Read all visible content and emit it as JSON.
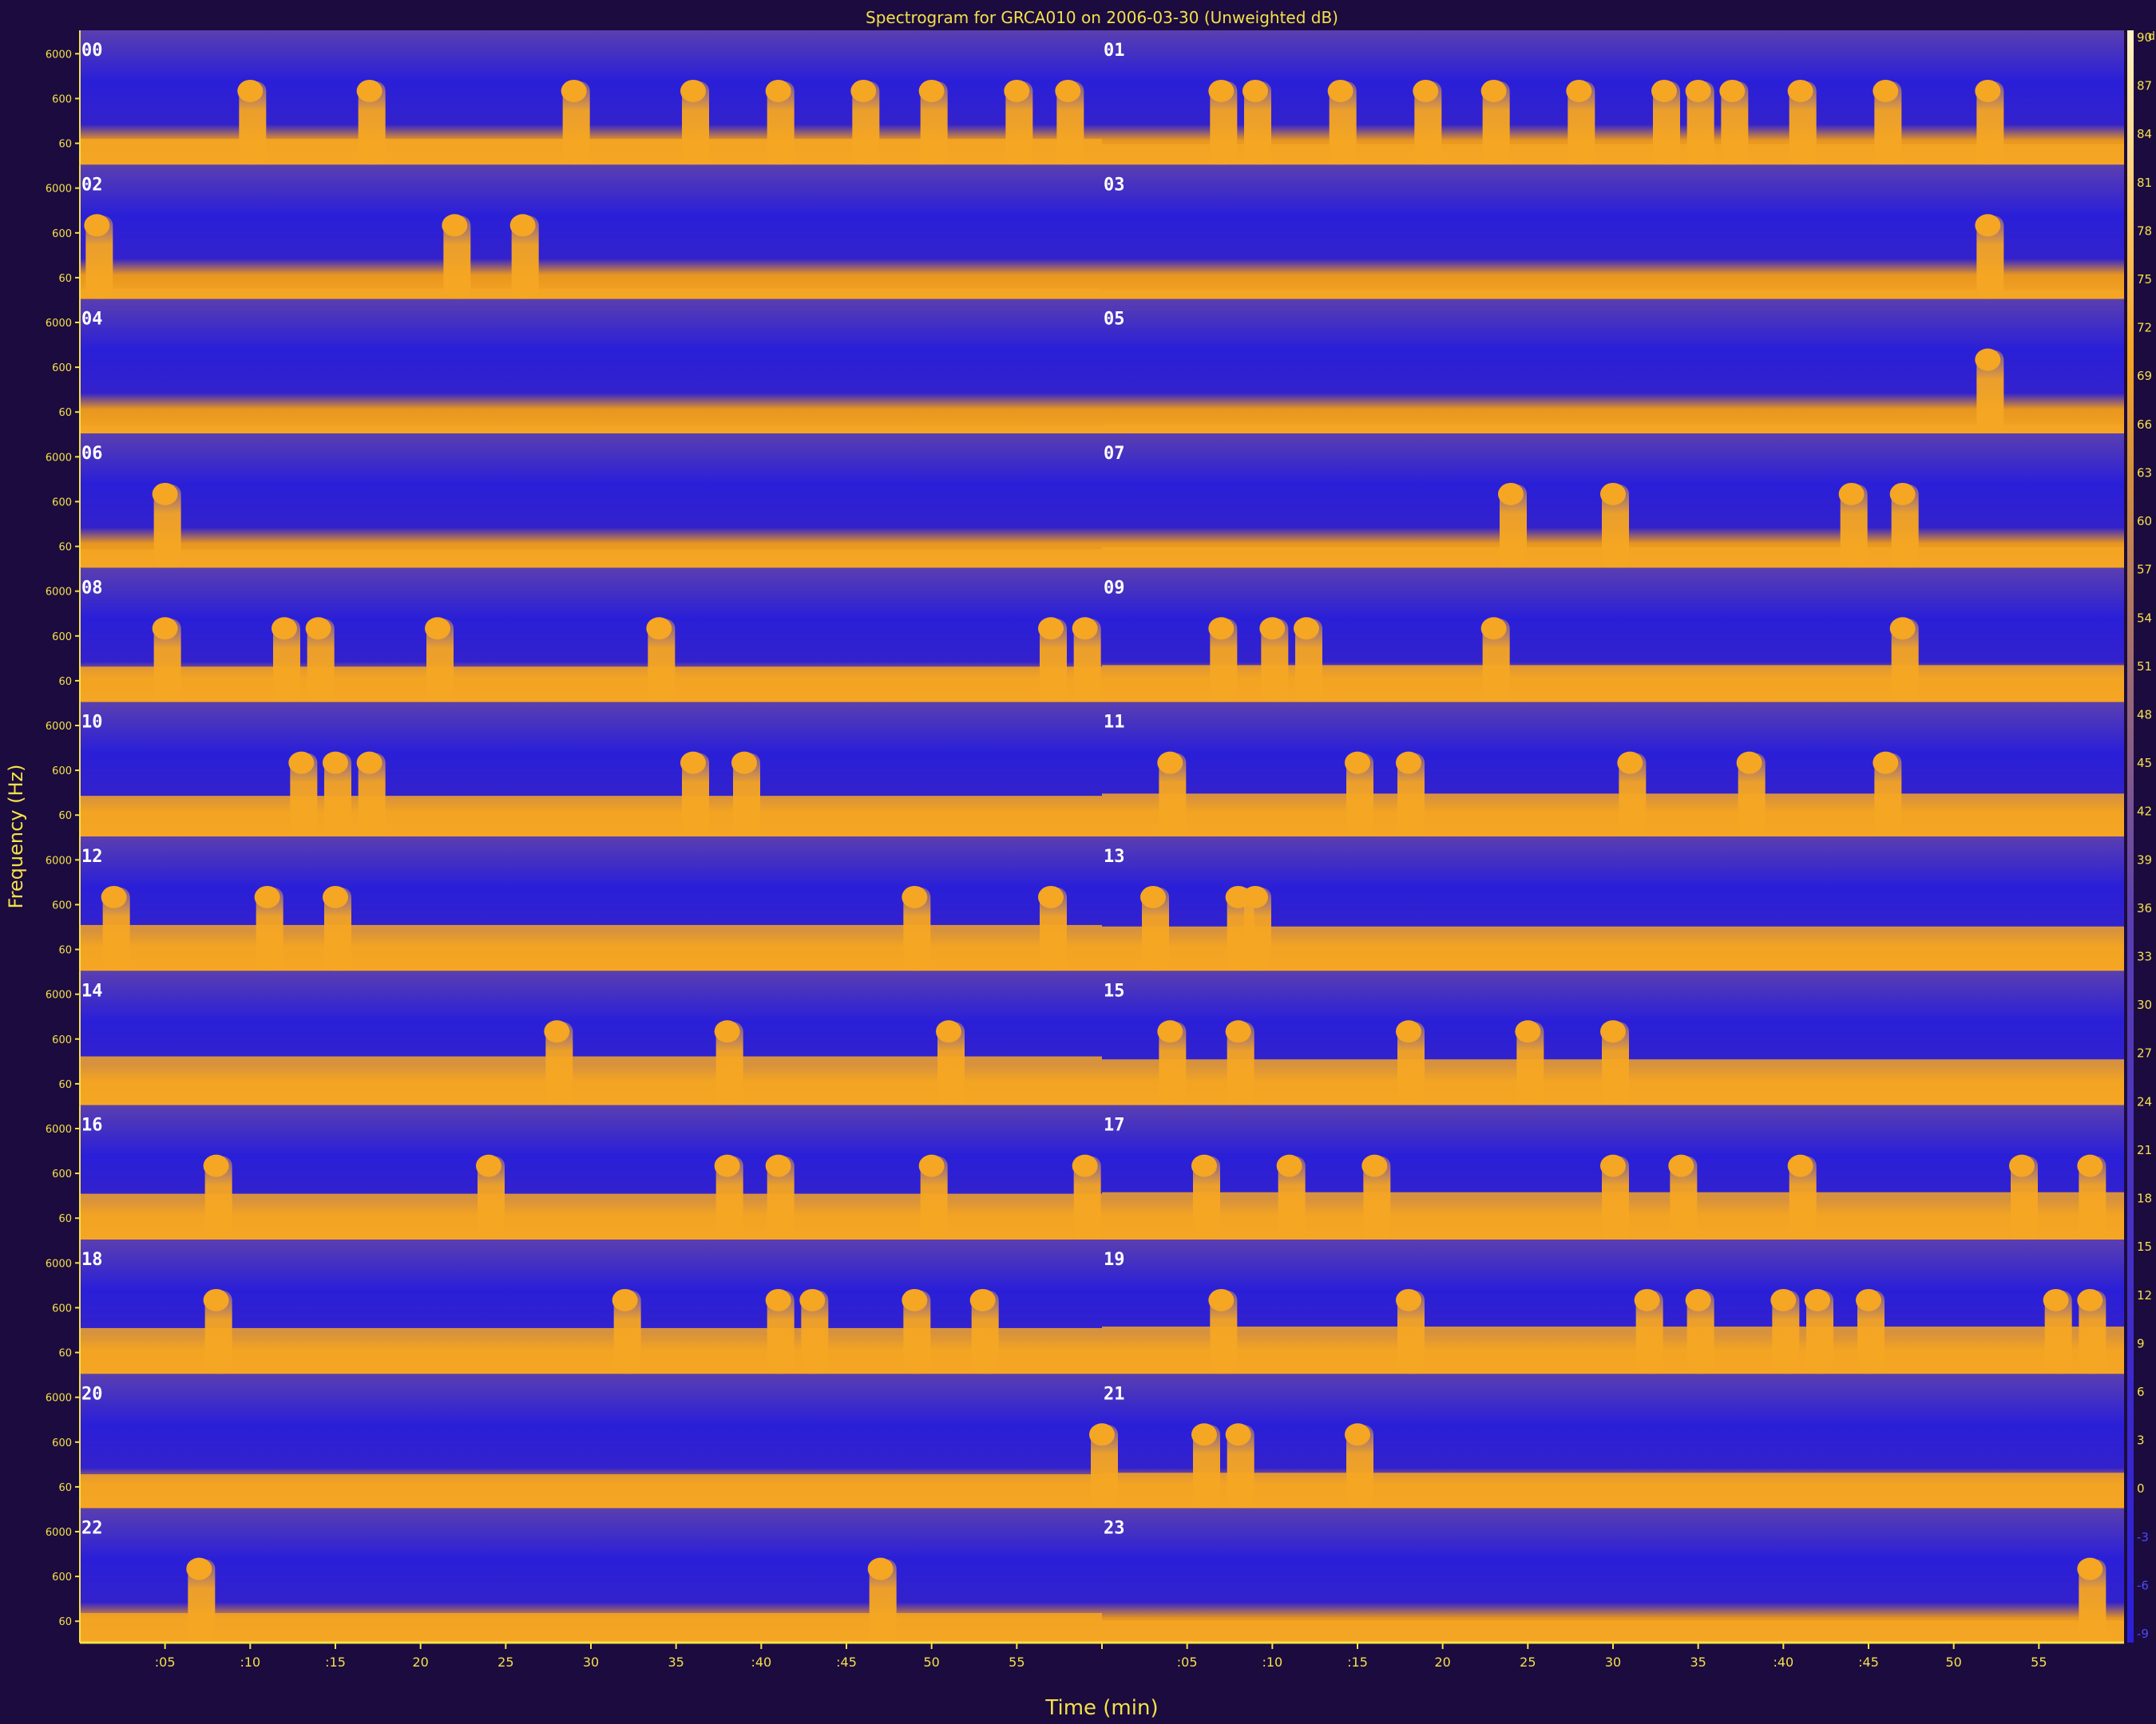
{
  "chart_data": {
    "type": "heatmap",
    "title": "Spectrogram for GRCA010 on 2006-03-30 (Unweighted dB)",
    "xlabel": "Time (min)",
    "ylabel": "Frequency (Hz)",
    "x_tick_labels": [
      ":05",
      ":10",
      ":15",
      "20",
      "25",
      "30",
      "35",
      ":40",
      ":45",
      "50",
      "55",
      "",
      ":05",
      ":10",
      ":15",
      "20",
      "25",
      "30",
      "35",
      ":40",
      ":45",
      "50",
      "55"
    ],
    "x_tick_minutes": [
      5,
      10,
      15,
      20,
      25,
      30,
      35,
      40,
      45,
      50,
      55,
      60,
      65,
      70,
      75,
      80,
      85,
      90,
      95,
      100,
      105,
      110,
      115
    ],
    "xlim": [
      0,
      120
    ],
    "y_tick_labels": [
      "6000",
      "600",
      "60"
    ],
    "y_tick_values": [
      6000,
      600,
      60
    ],
    "y_scale": "log",
    "ylim": [
      20,
      20000
    ],
    "rows": 12,
    "hours": [
      "00",
      "01",
      "02",
      "03",
      "04",
      "05",
      "06",
      "07",
      "08",
      "09",
      "10",
      "11",
      "12",
      "13",
      "14",
      "15",
      "16",
      "17",
      "18",
      "19",
      "20",
      "21",
      "22",
      "23"
    ],
    "colorbar": {
      "unit": "dB",
      "range": [
        -9,
        90
      ],
      "ticks": [
        "90",
        "87",
        "84",
        "81",
        "78",
        "75",
        "72",
        "69",
        "66",
        "63",
        "60",
        "57",
        "54",
        "51",
        "48",
        "45",
        "42",
        "39",
        "36",
        "33",
        "30",
        "27",
        "24",
        "21",
        "18",
        "15",
        "12",
        "9",
        "6",
        "3",
        "0",
        "-3",
        "-6",
        "-9"
      ],
      "colors": {
        "low": "#2a1fd8",
        "mid": "#4b3bb0",
        "high": "#f5a623",
        "peak": "#fff4c8"
      }
    },
    "band_levels": [
      [
        0.35,
        0.28
      ],
      [
        0.14,
        0.12
      ],
      [
        0.1,
        0.12
      ],
      [
        0.25,
        0.28
      ],
      [
        0.48,
        0.5
      ],
      [
        0.55,
        0.58
      ],
      [
        0.62,
        0.6
      ],
      [
        0.66,
        0.62
      ],
      [
        0.62,
        0.64
      ],
      [
        0.62,
        0.64
      ],
      [
        0.46,
        0.48
      ],
      [
        0.4,
        0.3
      ]
    ],
    "bursts_min": [
      [
        10,
        17,
        29,
        36,
        41,
        46,
        50,
        55,
        58,
        67,
        69,
        74,
        79,
        83,
        88,
        93,
        95,
        97,
        101,
        106,
        112
      ],
      [
        1,
        22,
        26,
        112
      ],
      [
        112
      ],
      [
        5,
        84,
        90,
        104,
        107
      ],
      [
        5,
        12,
        14,
        21,
        34,
        57,
        59,
        67,
        70,
        72,
        83,
        107
      ],
      [
        13,
        15,
        17,
        36,
        39,
        64,
        75,
        78,
        91,
        98,
        106
      ],
      [
        2,
        11,
        15,
        49,
        57,
        63,
        68,
        69
      ],
      [
        28,
        38,
        51,
        64,
        68,
        78,
        85,
        90
      ],
      [
        8,
        24,
        38,
        41,
        50,
        59,
        66,
        71,
        76,
        90,
        94,
        101,
        114,
        118
      ],
      [
        8,
        32,
        41,
        43,
        49,
        53,
        67,
        78,
        92,
        95,
        100,
        102,
        105,
        116,
        118
      ],
      [
        60,
        66,
        68,
        75
      ],
      [
        7,
        47,
        118
      ]
    ]
  }
}
